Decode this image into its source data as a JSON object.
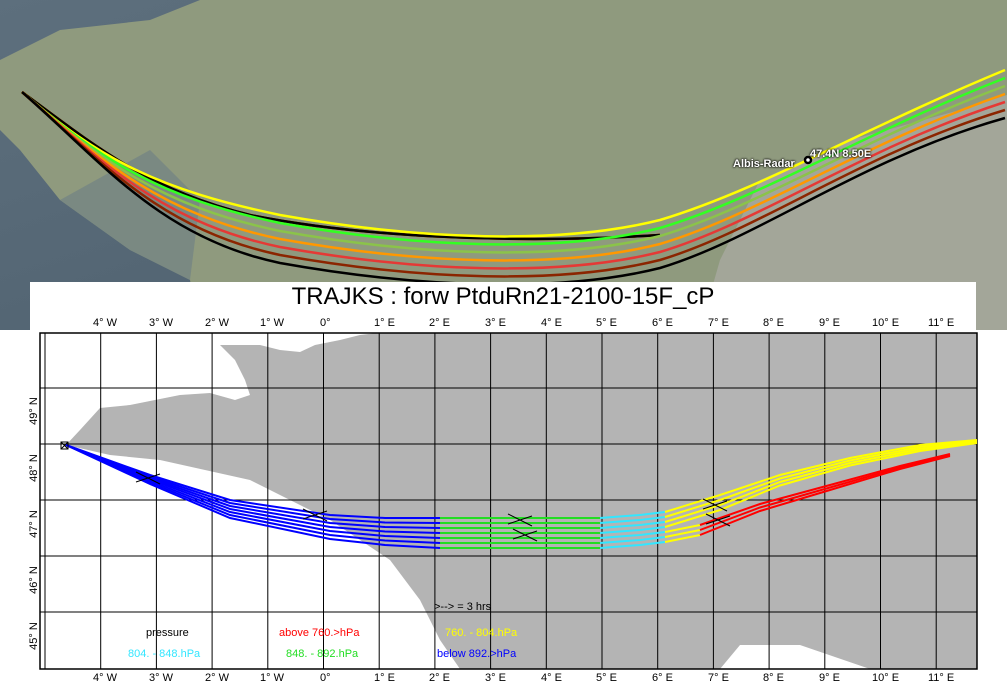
{
  "title": "TRAJKS : forw PtduRn21-2100-15F_cP",
  "satellite": {
    "station_label": "Albis-Radar",
    "coord_label": "47.4N 8.50E"
  },
  "lon_labels": [
    "4° W",
    "3° W",
    "2° W",
    "1° W",
    "0°",
    "1° E",
    "2° E",
    "3° E",
    "4° E",
    "5° E",
    "6° E",
    "7° E",
    "8° E",
    "9° E",
    "10° E",
    "11° E"
  ],
  "lat_labels": [
    "49° N",
    "48° N",
    "47° N",
    "46° N",
    "45° N"
  ],
  "time_marker": ">--> = 3 hrs",
  "legend": {
    "title": "pressure",
    "above": "above   760.>hPa",
    "r760_804": "760. -    804.hPa",
    "r804_848": "804. -    848.hPa",
    "r848_892": "848. -    892.hPa",
    "below": "below   892.>hPa",
    "colors": {
      "above": "#ff0000",
      "r760_804": "#ffff00",
      "r804_848": "#33e6ff",
      "r848_892": "#22dd22",
      "below": "#0000ff",
      "text": "#000000"
    }
  }
}
